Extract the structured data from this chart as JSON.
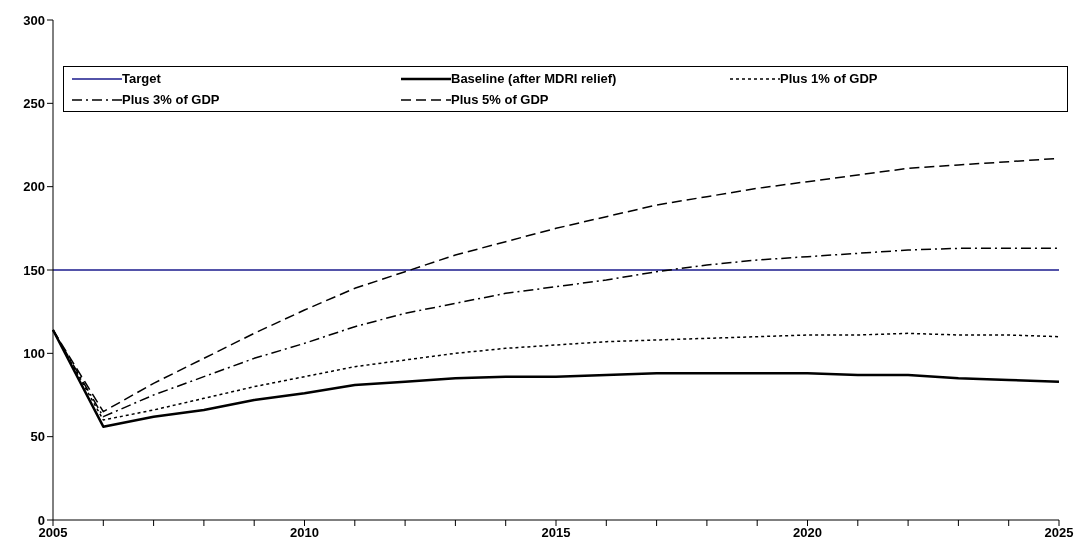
{
  "chart_data": {
    "type": "line",
    "categories": [
      "2005",
      null,
      null,
      null,
      null,
      "2010",
      null,
      null,
      null,
      null,
      "2015",
      null,
      null,
      null,
      null,
      "2020",
      null,
      null,
      null,
      null,
      "2025"
    ],
    "series": [
      {
        "name": "Target",
        "color": "#1a1a8c",
        "line_style": "solid",
        "values": [
          150,
          150,
          150,
          150,
          150,
          150,
          150,
          150,
          150,
          150,
          150,
          150,
          150,
          150,
          150,
          150,
          150,
          150,
          150,
          150,
          150
        ]
      },
      {
        "name": "Baseline (after MDRI relief)",
        "color": "#000000",
        "line_style": "solid",
        "values": [
          114,
          56,
          62,
          66,
          72,
          76,
          81,
          83,
          85,
          86,
          86,
          87,
          88,
          88,
          88,
          88,
          87,
          87,
          85,
          84,
          83
        ]
      },
      {
        "name": "Plus 1% of GDP",
        "color": "#000000",
        "line_style": "dotted",
        "values": [
          114,
          60,
          66,
          73,
          80,
          86,
          92,
          96,
          100,
          103,
          105,
          107,
          108,
          109,
          110,
          111,
          111,
          112,
          111,
          111,
          110
        ]
      },
      {
        "name": "Plus 3% of GDP",
        "color": "#000000",
        "line_style": "dashdot",
        "values": [
          114,
          62,
          75,
          86,
          97,
          106,
          116,
          124,
          130,
          136,
          140,
          144,
          149,
          153,
          156,
          158,
          160,
          162,
          163,
          163,
          163
        ]
      },
      {
        "name": "Plus 5% of GDP",
        "color": "#000000",
        "line_style": "dashed",
        "values": [
          114,
          65,
          82,
          97,
          112,
          126,
          139,
          149,
          159,
          167,
          175,
          182,
          189,
          194,
          199,
          203,
          207,
          211,
          213,
          215,
          217
        ]
      }
    ],
    "ylim": [
      0,
      300
    ],
    "yticks": [
      0,
      50,
      100,
      150,
      200,
      250,
      300
    ],
    "grid": false,
    "legend": "top",
    "marker": "none"
  }
}
